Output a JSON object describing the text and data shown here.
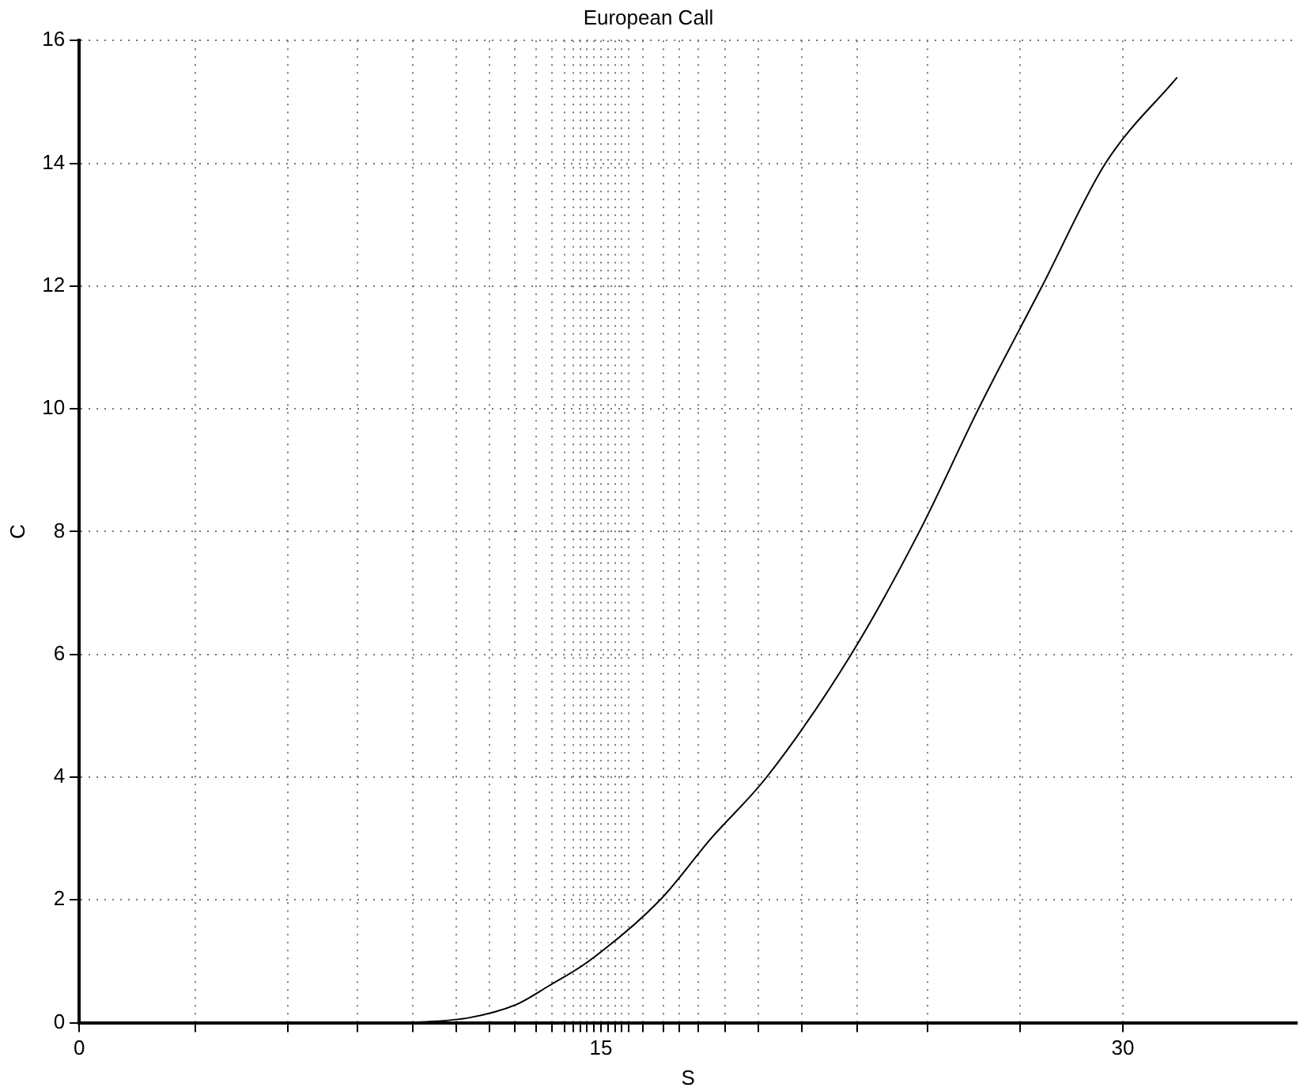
{
  "chart_data": {
    "type": "line",
    "title": "European Call",
    "xlabel": "S",
    "ylabel": "C",
    "xlim": [
      0,
      35
    ],
    "ylim": [
      0,
      16
    ],
    "xticks": [
      0,
      {
        "value": 3.34,
        "label": null
      },
      {
        "value": 5.99,
        "label": null
      },
      {
        "value": 8.0,
        "label": null
      },
      {
        "value": 9.6,
        "label": null
      },
      {
        "value": 10.84,
        "label": null
      },
      {
        "value": 11.8,
        "label": null
      },
      {
        "value": 12.53,
        "label": null
      },
      {
        "value": 13.13,
        "label": null
      },
      {
        "value": 13.59,
        "label": null
      },
      {
        "value": 13.95,
        "label": null
      },
      {
        "value": 14.2,
        "label": null
      },
      {
        "value": 14.4,
        "label": null
      },
      {
        "value": 14.6,
        "label": null
      },
      {
        "value": 14.8,
        "label": null
      },
      15,
      {
        "value": 15.2,
        "label": null
      },
      {
        "value": 15.4,
        "label": null
      },
      {
        "value": 15.6,
        "label": null
      },
      {
        "value": 15.8,
        "label": null
      },
      {
        "value": 16.2,
        "label": null
      },
      {
        "value": 16.79,
        "label": null
      },
      {
        "value": 17.25,
        "label": null
      },
      {
        "value": 17.8,
        "label": null
      },
      {
        "value": 18.57,
        "label": null
      },
      {
        "value": 19.53,
        "label": null
      },
      {
        "value": 20.77,
        "label": null
      },
      {
        "value": 22.37,
        "label": null
      },
      {
        "value": 24.38,
        "label": null
      },
      {
        "value": 27.04,
        "label": null
      },
      30
    ],
    "yticks": [
      0,
      2,
      4,
      6,
      8,
      10,
      12,
      14,
      16
    ],
    "grid": true,
    "legend": false,
    "marker": "none",
    "line_style": "solid",
    "series": [
      {
        "color": "#000000",
        "x": [
          9.6,
          11.2,
          12.58,
          13.5,
          14.64,
          16.7,
          18.16,
          19.76,
          22.19,
          24.15,
          25.85,
          27.68,
          29.5,
          31.56
        ],
        "values": [
          0,
          0.08,
          0.3,
          0.6,
          1,
          2,
          3,
          4,
          6,
          8,
          10,
          12,
          14,
          15.4
        ]
      }
    ]
  }
}
